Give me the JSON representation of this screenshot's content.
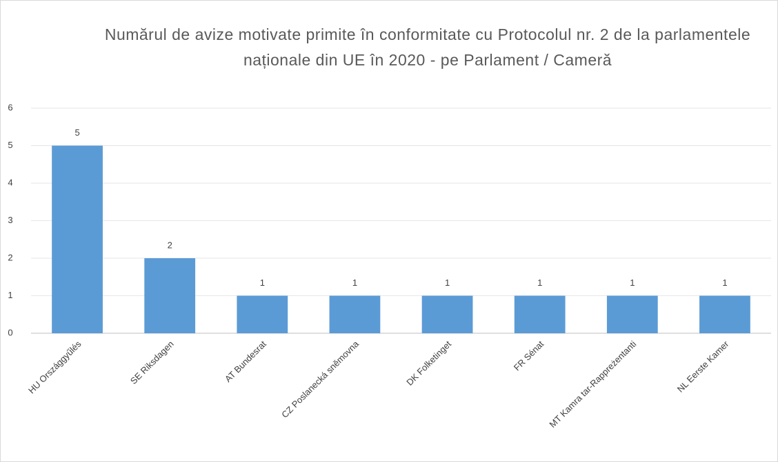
{
  "chart_data": {
    "type": "bar",
    "title": "Numărul de avize motivate primite în conformitate cu Protocolul nr. 2 de la parlamentele naționale din UE în 2020 - pe Parlament / Cameră",
    "categories": [
      "HU Országgyűlés",
      "SE Riksdagen",
      "AT Bundesrat",
      "CZ Poslanecká sněmovna",
      "DK Folketinget",
      "FR Sénat",
      "MT Kamra tar-Rappreżentanti",
      "NL Eerste Kamer"
    ],
    "values": [
      5,
      2,
      1,
      1,
      1,
      1,
      1,
      1
    ],
    "color": "#5b9bd5",
    "ylim": [
      0,
      6
    ],
    "yticks": [
      0,
      1,
      2,
      3,
      4,
      5,
      6
    ],
    "grid": true,
    "data_labels": true
  }
}
